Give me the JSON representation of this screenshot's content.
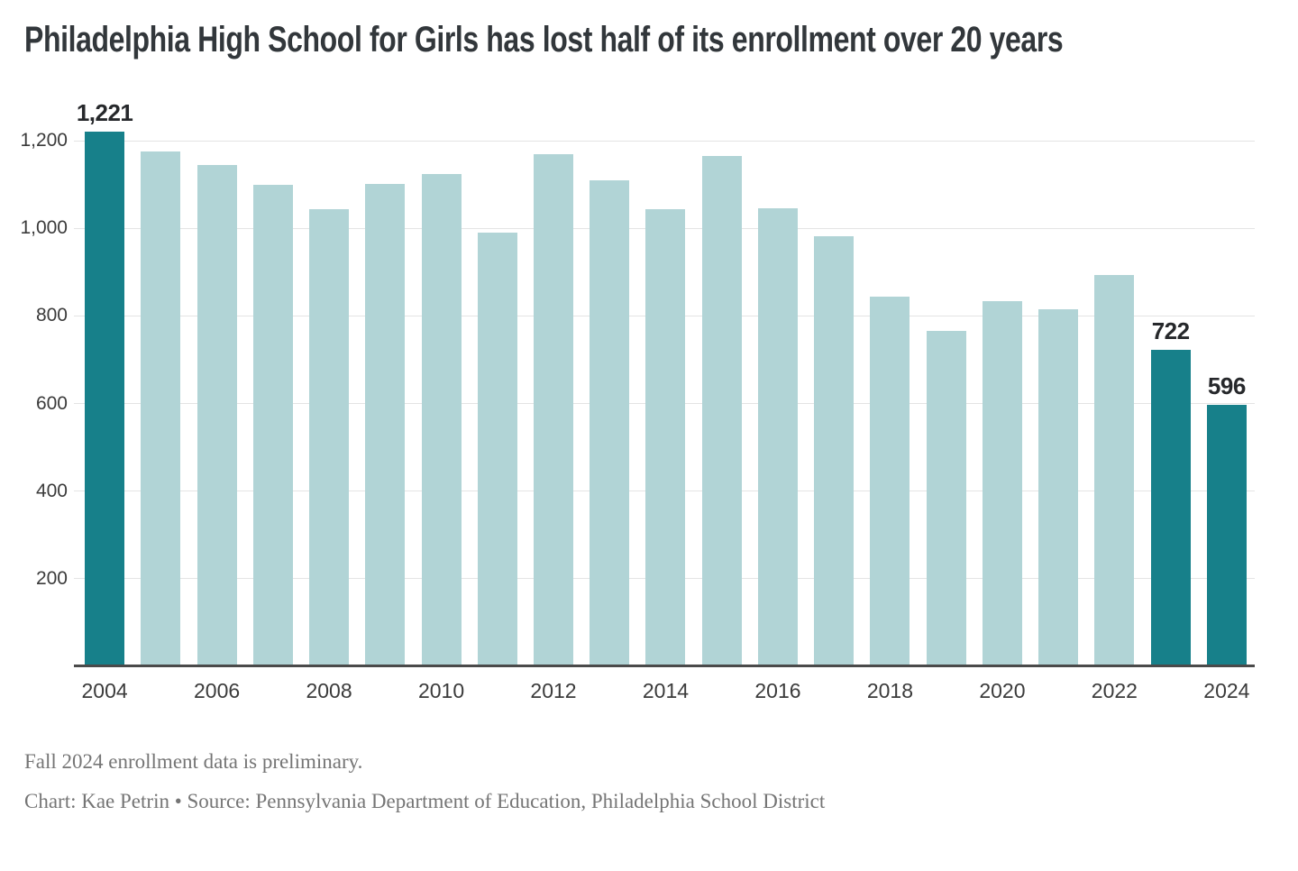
{
  "title": "Philadelphia High School for Girls has lost half of its enrollment over 20 years",
  "chart_data": {
    "type": "bar",
    "x": [
      2004,
      2005,
      2006,
      2007,
      2008,
      2009,
      2010,
      2011,
      2012,
      2013,
      2014,
      2015,
      2016,
      2017,
      2018,
      2019,
      2020,
      2021,
      2022,
      2023,
      2024
    ],
    "values": [
      1221,
      1175,
      1145,
      1100,
      1043,
      1102,
      1124,
      990,
      1169,
      1110,
      1043,
      1166,
      1046,
      982,
      843,
      766,
      834,
      816,
      893,
      722,
      596
    ],
    "highlighted_years": [
      2004,
      2023,
      2024
    ],
    "data_labels": {
      "2004": "1,221",
      "2023": "722",
      "2024": "596"
    },
    "title": "Philadelphia High School for Girls has lost half of its enrollment over 20 years",
    "xlabel": "",
    "ylabel": "",
    "ylim": [
      0,
      1250
    ],
    "yticks": [
      200,
      400,
      600,
      800,
      1000,
      1200
    ],
    "ytick_labels": [
      "200",
      "400",
      "600",
      "800",
      "1,000",
      "1,200"
    ],
    "xtick_labels": [
      "2004",
      "2006",
      "2008",
      "2010",
      "2012",
      "2014",
      "2016",
      "2018",
      "2020",
      "2022",
      "2024"
    ],
    "grid": "horizontal-only",
    "legend": "none",
    "colors": {
      "highlight": "#17808A",
      "default": "#B1D4D6",
      "gridline": "#E4E4E4",
      "axis_line": "#4A4A4A",
      "axis_text": "#3B3B3B",
      "data_label_text": "#26282B"
    }
  },
  "notes": {
    "line1": "Fall 2024 enrollment data is preliminary.",
    "credit": "Chart: Kae Petrin • Source: Pennsylvania Department of Education, Philadelphia School District"
  }
}
